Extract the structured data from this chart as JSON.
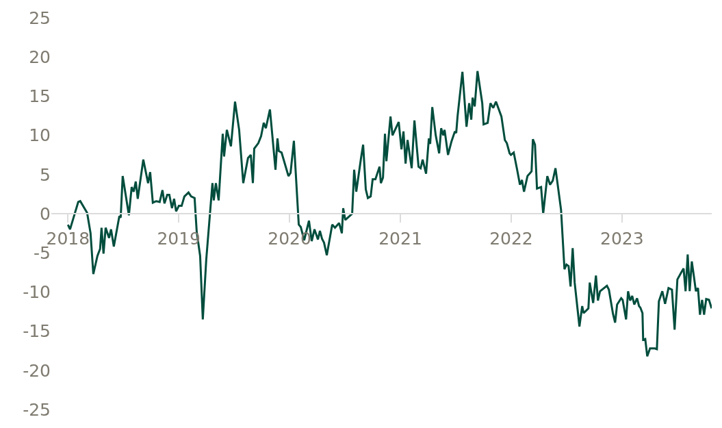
{
  "chart_data": {
    "type": "line",
    "x": [
      2018.0,
      2018.019,
      2018.093,
      2018.111,
      2018.173,
      2018.204,
      2018.229,
      2018.266,
      2018.29,
      2018.303,
      2018.321,
      2018.34,
      2018.371,
      2018.389,
      2018.414,
      2018.464,
      2018.476,
      2018.494,
      2018.55,
      2018.575,
      2018.593,
      2018.612,
      2018.63,
      2018.68,
      2018.723,
      2018.742,
      2018.766,
      2018.797,
      2018.828,
      2018.853,
      2018.871,
      2018.896,
      2018.915,
      2018.939,
      2018.958,
      2018.976,
      2019.001,
      2019.026,
      2019.051,
      2019.088,
      2019.112,
      2019.143,
      2019.162,
      2019.193,
      2019.217,
      2019.248,
      2019.304,
      2019.316,
      2019.335,
      2019.36,
      2019.397,
      2019.409,
      2019.434,
      2019.471,
      2019.508,
      2019.545,
      2019.582,
      2019.625,
      2019.65,
      2019.669,
      2019.681,
      2019.718,
      2019.743,
      2019.767,
      2019.786,
      2019.823,
      2019.873,
      2019.891,
      2019.903,
      2019.928,
      2019.99,
      2020.009,
      2020.039,
      2020.083,
      2020.101,
      2020.132,
      2020.175,
      2020.2,
      2020.225,
      2020.256,
      2020.274,
      2020.293,
      2020.311,
      2020.336,
      2020.385,
      2020.41,
      2020.447,
      2020.472,
      2020.484,
      2020.503,
      2020.565,
      2020.583,
      2020.602,
      2020.645,
      2020.664,
      2020.688,
      2020.707,
      2020.732,
      2020.75,
      2020.775,
      2020.812,
      2020.824,
      2020.843,
      2020.861,
      2020.874,
      2020.911,
      2020.929,
      2020.985,
      2021.01,
      2021.028,
      2021.047,
      2021.065,
      2021.102,
      2021.127,
      2021.164,
      2021.183,
      2021.201,
      2021.232,
      2021.257,
      2021.269,
      2021.288,
      2021.319,
      2021.35,
      2021.368,
      2021.387,
      2021.399,
      2021.43,
      2021.461,
      2021.492,
      2021.504,
      2021.516,
      2021.56,
      2021.597,
      2021.621,
      2021.64,
      2021.652,
      2021.671,
      2021.696,
      2021.739,
      2021.751,
      2021.788,
      2021.813,
      2021.838,
      2021.863,
      2021.912,
      2021.943,
      2021.961,
      2021.986,
      2021.998,
      2022.023,
      2022.054,
      2022.079,
      2022.097,
      2022.116,
      2022.147,
      2022.184,
      2022.196,
      2022.215,
      2022.233,
      2022.27,
      2022.289,
      2022.326,
      2022.351,
      2022.375,
      2022.4,
      2022.45,
      2022.481,
      2022.499,
      2022.518,
      2022.536,
      2022.555,
      2022.573,
      2022.616,
      2022.641,
      2022.654,
      2022.697,
      2022.709,
      2022.74,
      2022.765,
      2022.783,
      2022.802,
      2022.864,
      2022.882,
      2022.919,
      2022.938,
      2022.956,
      2022.993,
      2023.006,
      2023.037,
      2023.055,
      2023.074,
      2023.092,
      2023.111,
      2023.136,
      2023.154,
      2023.166,
      2023.185,
      2023.191,
      2023.21,
      2023.228,
      2023.253,
      2023.296,
      2023.315,
      2023.333,
      2023.364,
      2023.389,
      2023.42,
      2023.451,
      2023.475,
      2023.5,
      2023.531,
      2023.556,
      2023.574,
      2023.593,
      2023.611,
      2023.63,
      2023.649,
      2023.667,
      2023.686,
      2023.704,
      2023.723,
      2023.741,
      2023.76,
      2023.785,
      2023.809
    ],
    "series": [
      {
        "color": "#004d3d",
        "values": [
          -1.4,
          -2.0,
          1.5,
          1.6,
          0.1,
          -2.5,
          -7.7,
          -5.4,
          -4.5,
          -1.8,
          -5.1,
          -1.8,
          -3.1,
          -2.0,
          -4.2,
          -0.3,
          -0.5,
          4.8,
          -0.2,
          3.4,
          2.8,
          4.1,
          1.9,
          6.9,
          3.9,
          5.3,
          1.4,
          1.6,
          1.5,
          3.0,
          1.3,
          2.4,
          2.4,
          0.7,
          1.9,
          0.3,
          1.0,
          1.0,
          2.2,
          2.7,
          2.2,
          2.0,
          -2.3,
          -5.4,
          -13.5,
          -5.9,
          3.9,
          1.7,
          3.9,
          1.7,
          10.2,
          7.3,
          10.7,
          8.6,
          14.3,
          10.7,
          3.9,
          7.1,
          7.5,
          3.9,
          8.3,
          9.0,
          9.9,
          11.6,
          10.9,
          13.3,
          5.6,
          9.6,
          8.0,
          7.8,
          4.8,
          5.2,
          9.3,
          -1.4,
          -1.7,
          -3.4,
          -0.9,
          -3.5,
          -2.0,
          -3.3,
          -2.2,
          -3.2,
          -3.7,
          -5.3,
          -1.4,
          -1.8,
          -1.2,
          -2.5,
          0.7,
          -0.8,
          0.0,
          5.6,
          2.8,
          7.1,
          8.8,
          3.1,
          2.0,
          2.2,
          4.4,
          4.4,
          6.0,
          3.9,
          4.6,
          10.2,
          6.7,
          12.4,
          10.0,
          11.7,
          8.2,
          10.5,
          6.4,
          9.4,
          5.8,
          11.9,
          6.0,
          5.8,
          6.9,
          5.1,
          9.6,
          8.9,
          13.6,
          10.0,
          7.7,
          10.9,
          10.0,
          10.7,
          7.5,
          9.2,
          10.5,
          10.3,
          12.4,
          18.1,
          11.1,
          14.1,
          12.0,
          14.8,
          13.7,
          18.2,
          14.1,
          11.4,
          11.6,
          14.1,
          13.5,
          14.3,
          12.4,
          9.4,
          9.0,
          7.7,
          7.5,
          7.8,
          5.6,
          3.7,
          4.3,
          2.8,
          4.8,
          5.4,
          9.5,
          8.8,
          3.2,
          3.4,
          0.0,
          4.8,
          3.7,
          4.2,
          5.8,
          0.5,
          -7.1,
          -6.5,
          -6.7,
          -9.3,
          -4.4,
          -8.8,
          -14.4,
          -11.8,
          -12.7,
          -12.1,
          -8.8,
          -11.4,
          -7.9,
          -11.1,
          -9.9,
          -9.2,
          -9.7,
          -12.8,
          -13.9,
          -11.6,
          -10.8,
          -11.0,
          -13.5,
          -9.9,
          -11.1,
          -10.5,
          -11.6,
          -10.8,
          -11.8,
          -12.0,
          -12.7,
          -16.1,
          -16.0,
          -18.2,
          -17.2,
          -17.2,
          -17.3,
          -11.2,
          -9.9,
          -11.5,
          -9.5,
          -9.7,
          -14.8,
          -8.4,
          -7.6,
          -7.0,
          -9.9,
          -5.2,
          -9.9,
          -6.1,
          -8.0,
          -9.9,
          -9.5,
          -12.9,
          -11.0,
          -12.9,
          -10.9,
          -11.0,
          -12.1
        ]
      }
    ],
    "xlim": [
      2017.85,
      2023.81
    ],
    "xticks": [
      2018,
      2019,
      2020,
      2021,
      2022,
      2023
    ],
    "ylim": [
      -25,
      25
    ],
    "yticks": [
      -25,
      -20,
      -15,
      -10,
      -5,
      0,
      5,
      10,
      15,
      20,
      25
    ],
    "grid": false,
    "marker": "none",
    "line_style": "solid"
  }
}
